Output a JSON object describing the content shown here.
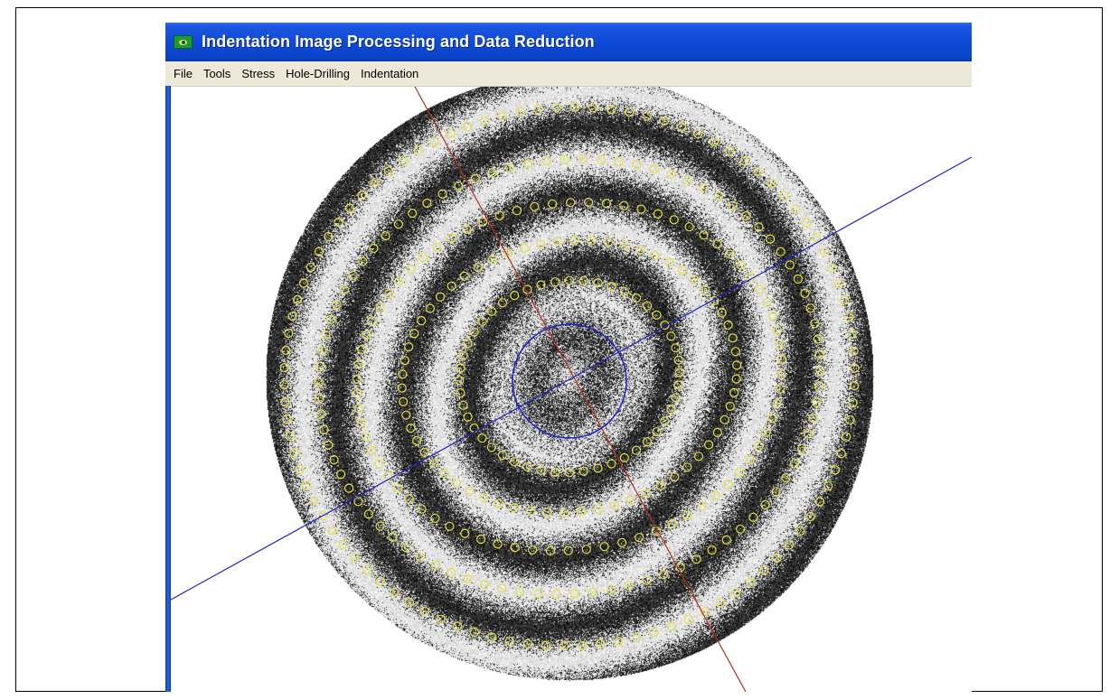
{
  "window": {
    "title": "Indentation Image Processing and Data Reduction",
    "icon": "app-flag-icon"
  },
  "menu": {
    "items": [
      "File",
      "Tools",
      "Stress",
      "Hole-Drilling",
      "Indentation"
    ]
  },
  "colors": {
    "titlebar": "#0f4ad6",
    "menubar": "#ece9d8",
    "red_axis": "#b03020",
    "blue_axis": "#2020c0",
    "ring_markers": "#e8e040"
  }
}
